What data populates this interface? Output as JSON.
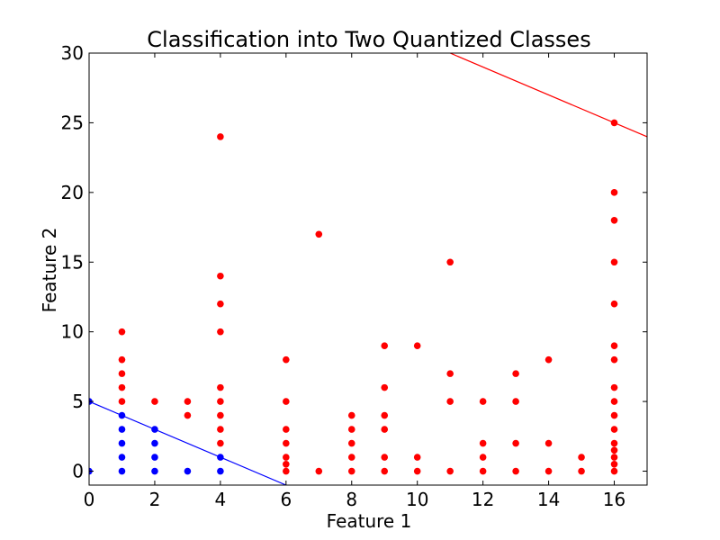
{
  "chart_data": {
    "type": "scatter",
    "title": "Classification into Two Quantized Classes",
    "xlabel": "Feature 1",
    "ylabel": "Feature 2",
    "xlim": [
      0,
      17
    ],
    "ylim": [
      -1,
      30
    ],
    "xticks": [
      0,
      2,
      4,
      6,
      8,
      10,
      12,
      14,
      16
    ],
    "yticks": [
      0,
      5,
      10,
      15,
      20,
      25,
      30
    ],
    "grid": false,
    "series": [
      {
        "color": "#0000ff",
        "points": [
          [
            0,
            0
          ],
          [
            0,
            5
          ],
          [
            1,
            0
          ],
          [
            1,
            1
          ],
          [
            1,
            2
          ],
          [
            1,
            3
          ],
          [
            1,
            4
          ],
          [
            2,
            0
          ],
          [
            2,
            1
          ],
          [
            2,
            2
          ],
          [
            2,
            3
          ],
          [
            3,
            0
          ],
          [
            4,
            0
          ],
          [
            4,
            1
          ]
        ]
      },
      {
        "color": "#ff0000",
        "points": [
          [
            1,
            5
          ],
          [
            1,
            6
          ],
          [
            1,
            7
          ],
          [
            1,
            8
          ],
          [
            1,
            10
          ],
          [
            2,
            5
          ],
          [
            3,
            4
          ],
          [
            3,
            5
          ],
          [
            4,
            2
          ],
          [
            4,
            3
          ],
          [
            4,
            4
          ],
          [
            4,
            5
          ],
          [
            4,
            6
          ],
          [
            4,
            10
          ],
          [
            4,
            12
          ],
          [
            4,
            14
          ],
          [
            4,
            24
          ],
          [
            6,
            0
          ],
          [
            6,
            0.5
          ],
          [
            6,
            1
          ],
          [
            6,
            2
          ],
          [
            6,
            3
          ],
          [
            6,
            5
          ],
          [
            6,
            8
          ],
          [
            7,
            0
          ],
          [
            7,
            17
          ],
          [
            8,
            0
          ],
          [
            8,
            1
          ],
          [
            8,
            2
          ],
          [
            8,
            3
          ],
          [
            8,
            4
          ],
          [
            9,
            0
          ],
          [
            9,
            1
          ],
          [
            9,
            3
          ],
          [
            9,
            4
          ],
          [
            9,
            6
          ],
          [
            9,
            9
          ],
          [
            10,
            0
          ],
          [
            10,
            1
          ],
          [
            10,
            9
          ],
          [
            11,
            0
          ],
          [
            11,
            5
          ],
          [
            11,
            7
          ],
          [
            11,
            15
          ],
          [
            12,
            0
          ],
          [
            12,
            1
          ],
          [
            12,
            2
          ],
          [
            12,
            5
          ],
          [
            13,
            0
          ],
          [
            13,
            2
          ],
          [
            13,
            5
          ],
          [
            13,
            7
          ],
          [
            14,
            0
          ],
          [
            14,
            2
          ],
          [
            14,
            8
          ],
          [
            15,
            0
          ],
          [
            15,
            1
          ],
          [
            16,
            0
          ],
          [
            16,
            0.5
          ],
          [
            16,
            1
          ],
          [
            16,
            1.5
          ],
          [
            16,
            2
          ],
          [
            16,
            3
          ],
          [
            16,
            4
          ],
          [
            16,
            5
          ],
          [
            16,
            6
          ],
          [
            16,
            8
          ],
          [
            16,
            9
          ],
          [
            16,
            12
          ],
          [
            16,
            15
          ],
          [
            16,
            18
          ],
          [
            16,
            20
          ],
          [
            16,
            25
          ]
        ]
      }
    ],
    "lines": [
      {
        "color": "#0000ff",
        "from": [
          0,
          5
        ],
        "to": [
          6,
          -1
        ]
      },
      {
        "color": "#ff0000",
        "from": [
          11,
          30
        ],
        "to": [
          17,
          24
        ]
      }
    ]
  }
}
